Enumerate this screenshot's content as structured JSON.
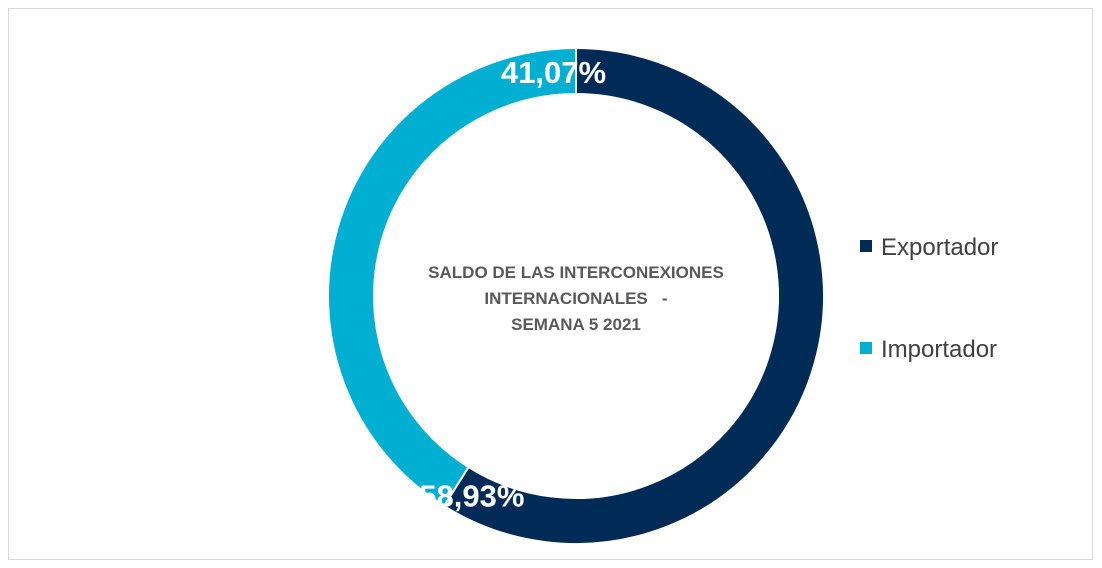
{
  "chart_data": {
    "type": "pie",
    "title_lines": [
      "SALDO DE LAS INTERCONEXIONES",
      "INTERNACIONALES   -",
      "SEMANA 5 2021"
    ],
    "categories": [
      "Exportador",
      "Importador"
    ],
    "values": [
      58.93,
      41.07
    ],
    "data_labels": [
      "58,93%",
      "41,07%"
    ],
    "colors": [
      "#002b57",
      "#00afd1"
    ],
    "donut": true,
    "legend_position": "right"
  }
}
